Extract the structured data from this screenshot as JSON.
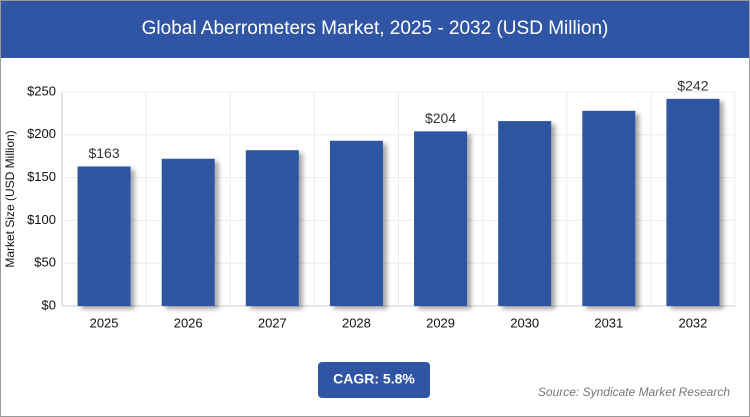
{
  "chart_data": {
    "type": "bar",
    "title": "Global Aberrometers Market, 2025 - 2032 (USD Million)",
    "y_label": "Market Size (USD Million)",
    "categories": [
      "2025",
      "2026",
      "2027",
      "2028",
      "2029",
      "2030",
      "2031",
      "2032"
    ],
    "values": [
      163,
      172,
      182,
      193,
      204,
      216,
      228,
      242
    ],
    "value_labels": [
      "$163",
      null,
      null,
      null,
      "$204",
      null,
      null,
      "$242"
    ],
    "color": "#2e54a0",
    "ylim": [
      0,
      250
    ],
    "yticks": [
      {
        "value": 0,
        "label": "$0"
      },
      {
        "value": 50,
        "label": "$50"
      },
      {
        "value": 100,
        "label": "$100"
      },
      {
        "value": 150,
        "label": "$150"
      },
      {
        "value": 200,
        "label": "$200"
      },
      {
        "value": 250,
        "label": "$250"
      }
    ],
    "grid": true,
    "cagr": "CAGR: 5.8%",
    "source": "Source: Syndicate Market Research"
  }
}
